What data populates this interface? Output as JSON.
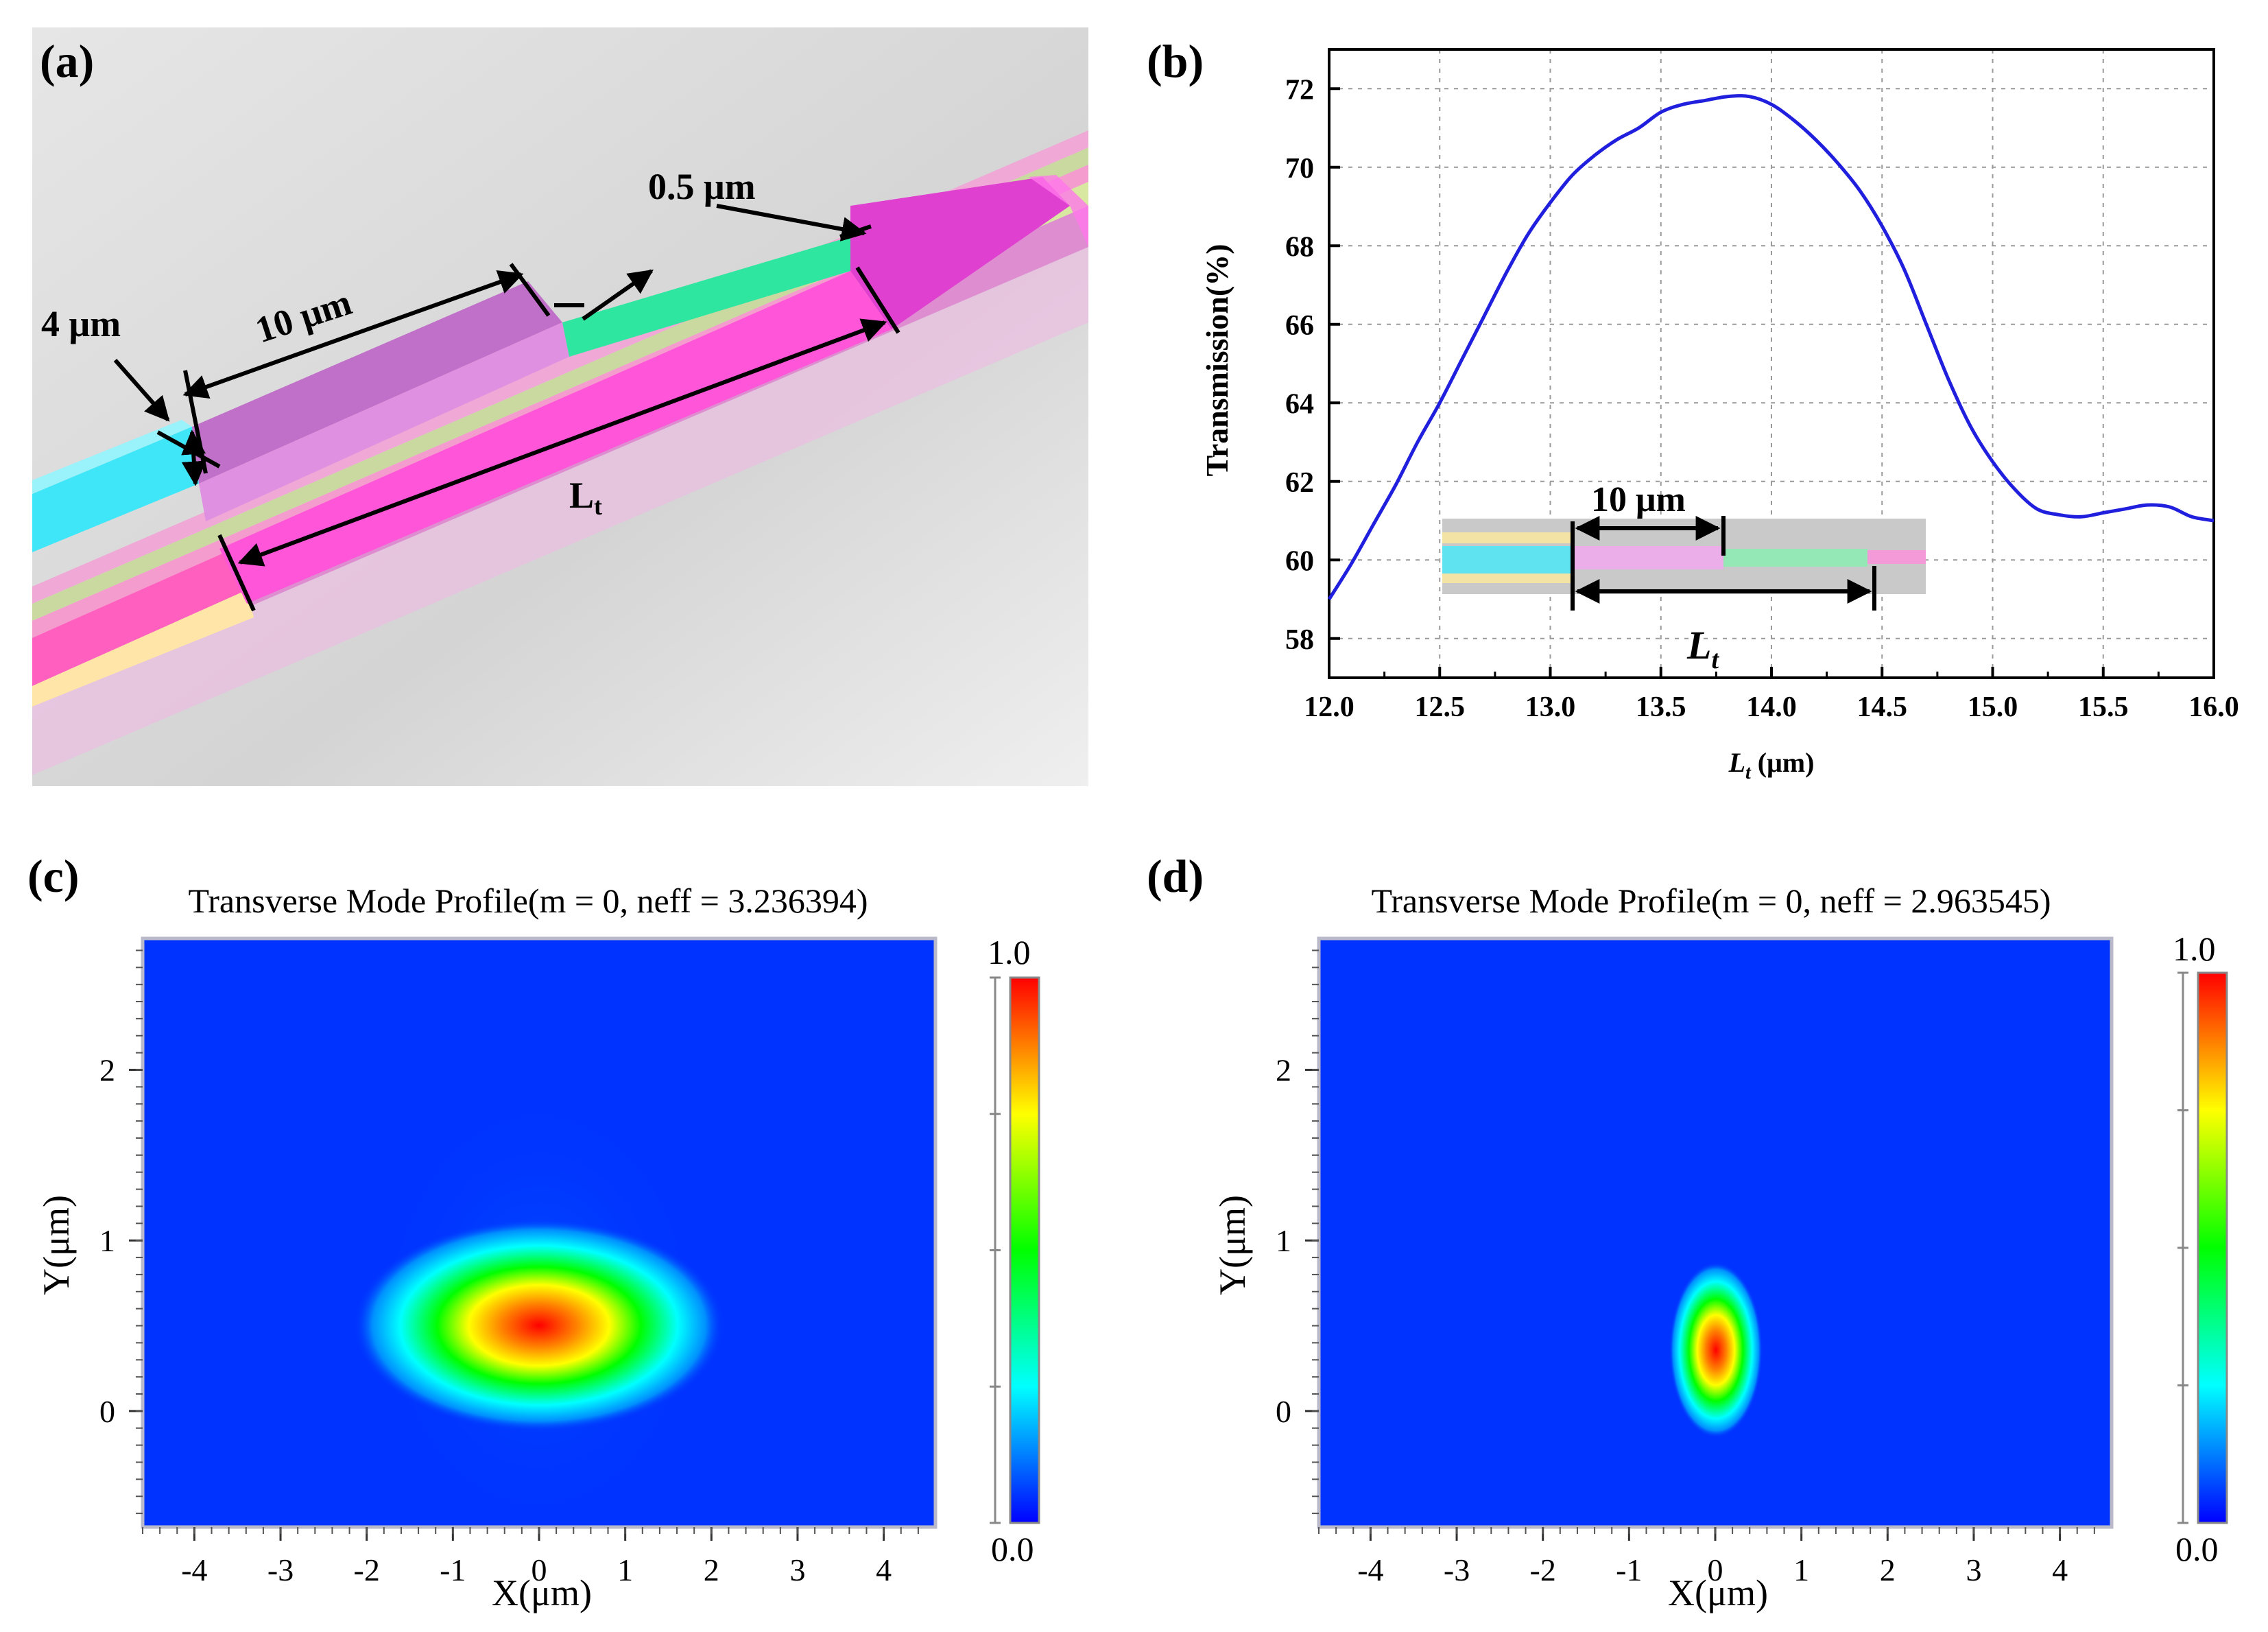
{
  "panels": {
    "a": {
      "label": "(a)",
      "dim_4um": "4 μm",
      "dim_10um": "10 μm",
      "dim_05um": "0.5 μm",
      "dim_lt_main": "L",
      "dim_lt_sub": "t"
    },
    "b": {
      "label": "(b)",
      "inset_10um": "10 μm",
      "inset_lt_main": "L",
      "inset_lt_sub": "t"
    },
    "c": {
      "label": "(c)",
      "title": "Transverse Mode Profile(m = 0, neff = 3.236394)",
      "cbar_max": "1.0",
      "cbar_min": "0.0",
      "xlabel": "X(μm)",
      "ylabel": "Y(μm)"
    },
    "d": {
      "label": "(d)",
      "title": "Transverse Mode Profile(m = 0, neff = 2.963545)",
      "cbar_max": "1.0",
      "cbar_min": "0.0",
      "xlabel": "X(μm)",
      "ylabel": "Y(μm)"
    }
  },
  "colors": {
    "curve": "#1f1fdd",
    "field_bg": "#0033ff",
    "grid": "#999999"
  },
  "chart_data": [
    {
      "type": "line",
      "panel": "b",
      "title": "",
      "xlabel_main": "L",
      "xlabel_sub": "t",
      "xlabel_unit": " (μm)",
      "ylabel": "Transmission(%)",
      "xlim": [
        12.0,
        16.0
      ],
      "ylim": [
        57.0,
        73.0
      ],
      "xticks": [
        "12.0",
        "12.5",
        "13.0",
        "13.5",
        "14.0",
        "14.5",
        "15.0",
        "15.5",
        "16.0"
      ],
      "yticks": [
        "58",
        "60",
        "62",
        "64",
        "66",
        "68",
        "70",
        "72"
      ],
      "grid": true,
      "series": [
        {
          "name": "Transmission",
          "x": [
            12.0,
            12.1,
            12.2,
            12.3,
            12.4,
            12.5,
            12.6,
            12.7,
            12.8,
            12.9,
            13.0,
            13.1,
            13.2,
            13.3,
            13.4,
            13.5,
            13.6,
            13.7,
            13.8,
            13.9,
            14.0,
            14.1,
            14.2,
            14.3,
            14.4,
            14.5,
            14.6,
            14.7,
            14.8,
            14.9,
            15.0,
            15.1,
            15.2,
            15.3,
            15.4,
            15.5,
            15.6,
            15.7,
            15.8,
            15.9,
            16.0
          ],
          "y": [
            59.0,
            59.9,
            60.9,
            61.9,
            63.0,
            64.0,
            65.1,
            66.2,
            67.3,
            68.3,
            69.1,
            69.8,
            70.3,
            70.7,
            71.0,
            71.4,
            71.6,
            71.7,
            71.8,
            71.8,
            71.6,
            71.2,
            70.7,
            70.1,
            69.4,
            68.5,
            67.4,
            66.0,
            64.6,
            63.4,
            62.5,
            61.8,
            61.3,
            61.15,
            61.1,
            61.2,
            61.3,
            61.4,
            61.35,
            61.1,
            61.0
          ]
        }
      ]
    },
    {
      "type": "heatmap",
      "panel": "c",
      "title": "Transverse Mode Profile(m = 0, neff = 3.236394)",
      "xlabel": "X(μm)",
      "ylabel": "Y(μm)",
      "xlim": [
        -4.6,
        4.6
      ],
      "ylim": [
        -0.68,
        2.77
      ],
      "xticks": [
        "-4",
        "-3",
        "-2",
        "-1",
        "0",
        "1",
        "2",
        "3",
        "4"
      ],
      "yticks": [
        "0",
        "1",
        "2"
      ],
      "colorbar": [
        0.0,
        1.0
      ],
      "peak": {
        "x": 0.0,
        "y": 0.45,
        "sigma_x": 1.0,
        "sigma_y": 0.35
      }
    },
    {
      "type": "heatmap",
      "panel": "d",
      "title": "Transverse Mode Profile(m = 0, neff = 2.963545)",
      "xlabel": "X(μm)",
      "ylabel": "Y(μm)",
      "xlim": [
        -4.6,
        4.6
      ],
      "ylim": [
        -0.68,
        2.77
      ],
      "xticks": [
        "-4",
        "-3",
        "-2",
        "-1",
        "0",
        "1",
        "2",
        "3",
        "4"
      ],
      "yticks": [
        "0",
        "1",
        "2"
      ],
      "colorbar": [
        0.0,
        1.0
      ],
      "peak": {
        "x": 0.0,
        "y": 0.28,
        "sigma_x": 0.13,
        "sigma_y": 0.27
      }
    }
  ]
}
